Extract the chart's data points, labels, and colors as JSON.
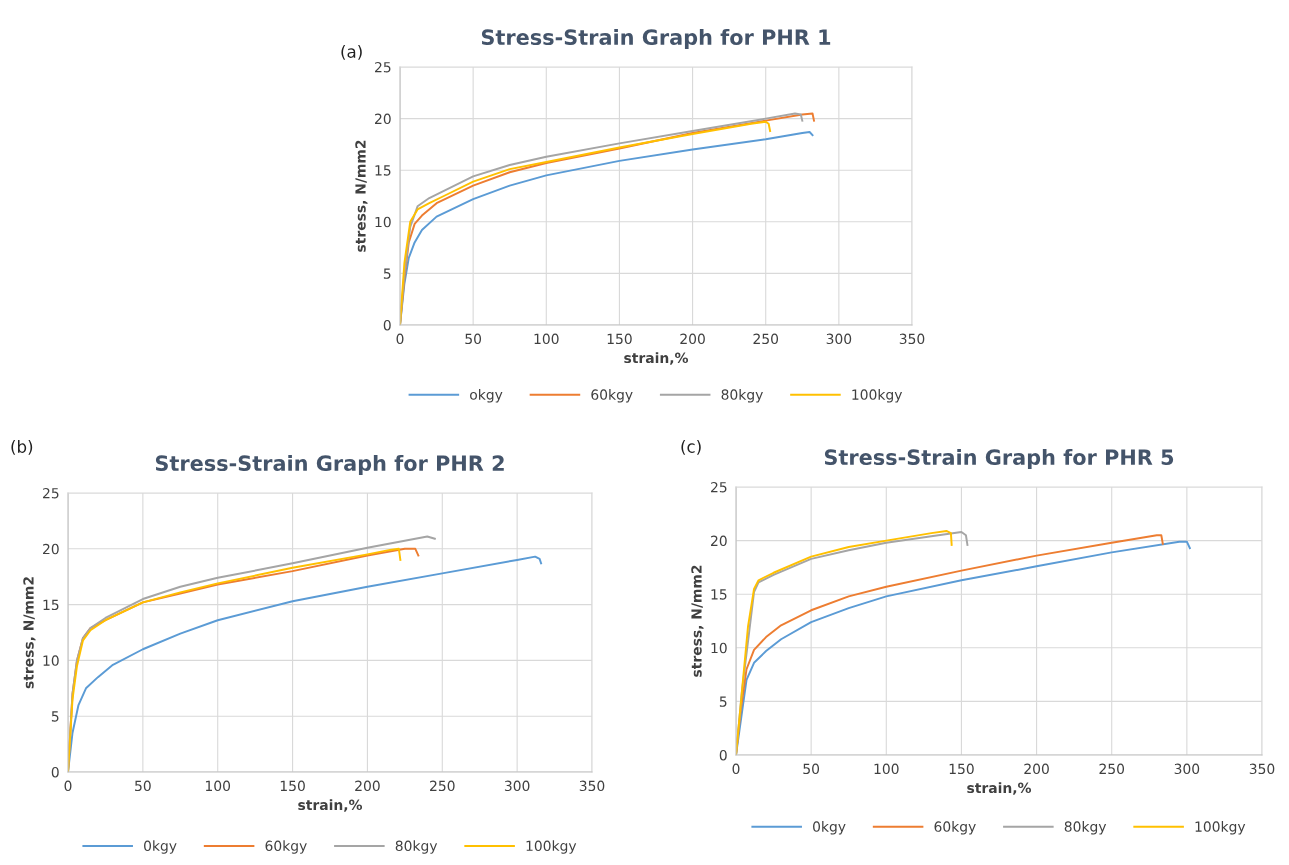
{
  "chart_data": [
    {
      "type": "line",
      "title": "Stress-Strain Graph for PHR 1",
      "xlabel": "strain,%",
      "ylabel": "stress, N/mm2",
      "annotations": [
        "(a)"
      ],
      "xlim": [
        0,
        350
      ],
      "ylim": [
        0,
        25
      ],
      "xticks": [
        0,
        50,
        100,
        150,
        200,
        250,
        300,
        350
      ],
      "yticks": [
        0,
        5,
        10,
        15,
        20,
        25
      ],
      "grid": true,
      "legend": "bottom",
      "marker": "none",
      "line_style": "solid",
      "series": [
        {
          "name": "okgy",
          "color": "#5b9bd5",
          "x": [
            0,
            3,
            6,
            10,
            15,
            25,
            50,
            75,
            100,
            150,
            200,
            250,
            275,
            280,
            282
          ],
          "values": [
            0,
            4,
            6.5,
            8,
            9.2,
            10.5,
            12.2,
            13.5,
            14.5,
            15.9,
            17,
            18,
            18.6,
            18.7,
            18.4
          ]
        },
        {
          "name": "60kgy",
          "color": "#ed7d31",
          "x": [
            0,
            3,
            6,
            10,
            15,
            25,
            50,
            75,
            100,
            150,
            200,
            250,
            275,
            282,
            283
          ],
          "values": [
            0,
            4.5,
            8,
            9.8,
            10.6,
            11.8,
            13.5,
            14.8,
            15.7,
            17.1,
            18.6,
            19.8,
            20.4,
            20.5,
            19.8
          ]
        },
        {
          "name": "80kgy",
          "color": "#a5a5a5",
          "x": [
            0,
            3,
            7,
            12,
            20,
            30,
            50,
            75,
            100,
            150,
            200,
            250,
            270,
            274,
            275
          ],
          "values": [
            0,
            5,
            9.5,
            11.5,
            12.3,
            13,
            14.4,
            15.5,
            16.3,
            17.6,
            18.8,
            20,
            20.5,
            20.4,
            19.8
          ]
        },
        {
          "name": "100kgy",
          "color": "#ffc000",
          "x": [
            0,
            3,
            7,
            12,
            20,
            30,
            50,
            75,
            100,
            150,
            200,
            240,
            250,
            252,
            253
          ],
          "values": [
            0,
            6,
            10,
            11.2,
            11.8,
            12.5,
            13.9,
            15.1,
            15.8,
            17.2,
            18.5,
            19.5,
            19.7,
            19.5,
            18.8
          ]
        }
      ]
    },
    {
      "type": "line",
      "title": "Stress-Strain Graph for PHR 2",
      "xlabel": "strain,%",
      "ylabel": "stress, N/mm2",
      "annotations": [
        "(b)"
      ],
      "xlim": [
        0,
        350
      ],
      "ylim": [
        0,
        25
      ],
      "xticks": [
        0,
        50,
        100,
        150,
        200,
        250,
        300,
        350
      ],
      "yticks": [
        0,
        5,
        10,
        15,
        20,
        25
      ],
      "grid": true,
      "legend": "bottom",
      "marker": "none",
      "line_style": "solid",
      "series": [
        {
          "name": "0kgy",
          "color": "#5b9bd5",
          "x": [
            0,
            3,
            7,
            12,
            20,
            30,
            50,
            75,
            100,
            150,
            200,
            250,
            300,
            312,
            315,
            316
          ],
          "values": [
            0,
            3.5,
            6,
            7.5,
            8.5,
            9.6,
            11,
            12.4,
            13.6,
            15.3,
            16.6,
            17.8,
            19,
            19.3,
            19.1,
            18.7
          ]
        },
        {
          "name": "60kgy",
          "color": "#ed7d31",
          "x": [
            0,
            3,
            6,
            10,
            15,
            25,
            50,
            75,
            100,
            150,
            200,
            225,
            232,
            234
          ],
          "values": [
            0,
            7,
            10,
            12,
            12.9,
            13.6,
            15.2,
            16,
            16.8,
            18,
            19.4,
            20,
            20,
            19.4
          ]
        },
        {
          "name": "80kgy",
          "color": "#a5a5a5",
          "x": [
            0,
            3,
            6,
            10,
            15,
            25,
            50,
            75,
            100,
            150,
            200,
            240,
            245
          ],
          "values": [
            0,
            7,
            10,
            12,
            12.9,
            13.8,
            15.5,
            16.6,
            17.4,
            18.7,
            20.1,
            21.1,
            20.9
          ]
        },
        {
          "name": "100kgy",
          "color": "#ffc000",
          "x": [
            0,
            3,
            6,
            10,
            15,
            25,
            50,
            75,
            100,
            150,
            200,
            215,
            221,
            222
          ],
          "values": [
            0,
            6.5,
            9.5,
            11.8,
            12.7,
            13.6,
            15.2,
            16.1,
            16.9,
            18.3,
            19.5,
            19.9,
            20,
            19
          ]
        }
      ]
    },
    {
      "type": "line",
      "title": "Stress-Strain Graph for PHR 5",
      "xlabel": "strain,%",
      "ylabel": "stress, N/mm2",
      "annotations": [
        "(c)"
      ],
      "xlim": [
        0,
        350
      ],
      "ylim": [
        0,
        25
      ],
      "xticks": [
        0,
        50,
        100,
        150,
        200,
        250,
        300,
        350
      ],
      "yticks": [
        0,
        5,
        10,
        15,
        20,
        25
      ],
      "grid": true,
      "legend": "bottom",
      "marker": "none",
      "line_style": "solid",
      "series": [
        {
          "name": "0kgy",
          "color": "#5b9bd5",
          "x": [
            0,
            7,
            12,
            20,
            30,
            50,
            75,
            100,
            150,
            200,
            250,
            295,
            300,
            302
          ],
          "values": [
            0,
            7,
            8.6,
            9.7,
            10.8,
            12.4,
            13.7,
            14.8,
            16.3,
            17.6,
            18.9,
            19.9,
            19.9,
            19.3
          ]
        },
        {
          "name": "60kgy",
          "color": "#ed7d31",
          "x": [
            0,
            3,
            7,
            12,
            20,
            30,
            50,
            75,
            100,
            150,
            200,
            250,
            280,
            283,
            284
          ],
          "values": [
            0,
            4,
            8,
            9.8,
            11,
            12.1,
            13.5,
            14.8,
            15.7,
            17.2,
            18.6,
            19.8,
            20.5,
            20.5,
            19.7
          ]
        },
        {
          "name": "80kgy",
          "color": "#a5a5a5",
          "x": [
            0,
            4,
            12,
            15,
            25,
            50,
            75,
            100,
            130,
            150,
            153,
            154
          ],
          "values": [
            0,
            6,
            15.2,
            16.1,
            16.8,
            18.3,
            19.1,
            19.8,
            20.4,
            20.8,
            20.5,
            19.6
          ]
        },
        {
          "name": "100kgy",
          "color": "#ffc000",
          "x": [
            0,
            4,
            8,
            12,
            15,
            25,
            50,
            75,
            100,
            130,
            140,
            143,
            143.5
          ],
          "values": [
            0,
            6,
            12,
            15.5,
            16.3,
            17,
            18.5,
            19.4,
            20,
            20.7,
            20.9,
            20.7,
            19.6
          ]
        }
      ]
    }
  ]
}
